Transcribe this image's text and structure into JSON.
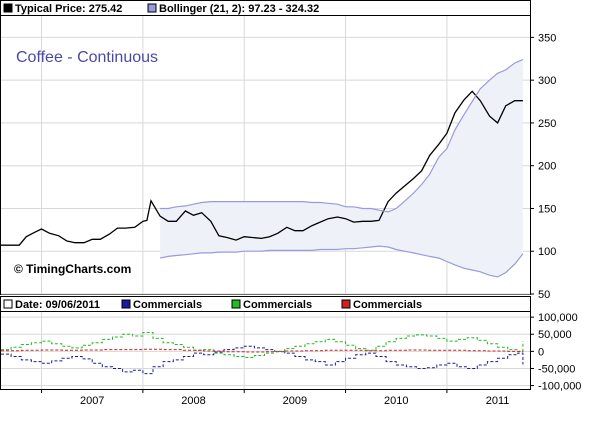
{
  "price_panel": {
    "title": "Coffee - Continuous",
    "copyright": "© TimingCharts.com",
    "legend": [
      {
        "label": "Typical Price: 275.42",
        "color": "#000000"
      },
      {
        "label": "Bollinger (21, 2): 97.23 - 324.32",
        "color": "#9999dd"
      }
    ]
  },
  "cot_panel": {
    "legend": [
      {
        "label": "Date: 09/06/2011",
        "color": "#ffffff"
      },
      {
        "label": "Commercials",
        "color": "#1a1aa8"
      },
      {
        "label": "Commercials",
        "color": "#22bb22"
      },
      {
        "label": "Commercials",
        "color": "#cc2222"
      }
    ]
  },
  "chart_data": [
    {
      "type": "line",
      "title": "Coffee - Continuous",
      "x_ticks": [
        "2007",
        "2008",
        "2009",
        "2010",
        "2011"
      ],
      "y_ticks": [
        50,
        100,
        150,
        200,
        250,
        300,
        350
      ],
      "ylim": [
        50,
        375
      ],
      "x_range": [
        2006.6,
        2011.82
      ],
      "grid": true,
      "series": [
        {
          "name": "Typical Price: 275.42",
          "color": "#000000",
          "x": [
            2006.6,
            2006.78,
            2006.85,
            2006.93,
            2007.0,
            2007.08,
            2007.17,
            2007.25,
            2007.33,
            2007.42,
            2007.5,
            2007.58,
            2007.67,
            2007.75,
            2007.83,
            2007.92,
            2008.0,
            2008.04,
            2008.08,
            2008.17,
            2008.25,
            2008.33,
            2008.42,
            2008.5,
            2008.58,
            2008.67,
            2008.75,
            2008.83,
            2008.92,
            2009.0,
            2009.08,
            2009.17,
            2009.25,
            2009.33,
            2009.42,
            2009.5,
            2009.58,
            2009.67,
            2009.75,
            2009.83,
            2009.92,
            2010.0,
            2010.08,
            2010.17,
            2010.25,
            2010.33,
            2010.42,
            2010.5,
            2010.58,
            2010.67,
            2010.75,
            2010.83,
            2010.92,
            2011.0,
            2011.08,
            2011.17,
            2011.25,
            2011.33,
            2011.42,
            2011.5,
            2011.58,
            2011.67,
            2011.75
          ],
          "values": [
            107,
            107,
            117,
            122,
            126,
            121,
            118,
            112,
            110,
            110,
            114,
            114,
            120,
            127,
            127,
            128,
            135,
            136,
            159,
            141,
            135,
            135,
            147,
            142,
            145,
            135,
            118,
            116,
            113,
            117,
            116,
            115,
            117,
            121,
            128,
            124,
            124,
            130,
            134,
            138,
            140,
            138,
            134,
            135,
            135,
            136,
            158,
            168,
            176,
            185,
            194,
            212,
            225,
            238,
            262,
            277,
            287,
            276,
            258,
            250,
            270,
            276,
            276
          ]
        },
        {
          "name": "Bollinger upper",
          "color": "#9999dd",
          "x": [
            2008.17,
            2008.25,
            2008.33,
            2008.42,
            2008.5,
            2008.58,
            2008.67,
            2008.75,
            2008.83,
            2008.92,
            2009.0,
            2009.08,
            2009.17,
            2009.25,
            2009.33,
            2009.42,
            2009.5,
            2009.58,
            2009.67,
            2009.75,
            2009.83,
            2009.92,
            2010.0,
            2010.08,
            2010.17,
            2010.25,
            2010.33,
            2010.42,
            2010.5,
            2010.58,
            2010.67,
            2010.75,
            2010.83,
            2010.92,
            2011.0,
            2011.08,
            2011.17,
            2011.25,
            2011.33,
            2011.42,
            2011.5,
            2011.58,
            2011.67,
            2011.75
          ],
          "values": [
            150,
            150,
            152,
            153,
            155,
            157,
            158,
            158,
            158,
            158,
            158,
            158,
            158,
            158,
            158,
            158,
            158,
            158,
            157,
            157,
            156,
            155,
            152,
            152,
            150,
            150,
            148,
            146,
            150,
            158,
            168,
            178,
            190,
            210,
            220,
            242,
            260,
            275,
            290,
            300,
            308,
            312,
            320,
            324
          ]
        },
        {
          "name": "Bollinger lower",
          "color": "#9999dd",
          "x": [
            2008.17,
            2008.25,
            2008.33,
            2008.42,
            2008.5,
            2008.58,
            2008.67,
            2008.75,
            2008.83,
            2008.92,
            2009.0,
            2009.08,
            2009.17,
            2009.25,
            2009.33,
            2009.42,
            2009.5,
            2009.58,
            2009.67,
            2009.75,
            2009.83,
            2009.92,
            2010.0,
            2010.08,
            2010.17,
            2010.25,
            2010.33,
            2010.42,
            2010.5,
            2010.58,
            2010.67,
            2010.75,
            2010.83,
            2010.92,
            2011.0,
            2011.08,
            2011.17,
            2011.25,
            2011.33,
            2011.42,
            2011.5,
            2011.58,
            2011.67,
            2011.75
          ],
          "values": [
            92,
            94,
            95,
            96,
            97,
            98,
            98,
            99,
            99,
            99,
            100,
            100,
            100,
            101,
            101,
            101,
            101,
            101,
            101,
            102,
            102,
            102,
            103,
            103,
            104,
            105,
            106,
            105,
            102,
            100,
            98,
            96,
            94,
            92,
            88,
            84,
            80,
            78,
            76,
            72,
            70,
            75,
            85,
            97
          ]
        }
      ]
    },
    {
      "type": "line",
      "title": "",
      "x_ticks": [
        "2007",
        "2008",
        "2009",
        "2010",
        "2011"
      ],
      "y_ticks": [
        100000,
        50000,
        0,
        -50000,
        -100000
      ],
      "y_tick_labels": [
        "100,000",
        "50,000",
        "0",
        "-50,000",
        "-100,000"
      ],
      "ylim": [
        -110000,
        115000
      ],
      "x_range": [
        2006.6,
        2011.82
      ],
      "grid": true,
      "step": true,
      "series": [
        {
          "name": "Commercials",
          "color": "#1a1aa8",
          "x": [
            2006.6,
            2006.7,
            2006.8,
            2006.9,
            2007.0,
            2007.1,
            2007.2,
            2007.3,
            2007.4,
            2007.5,
            2007.6,
            2007.7,
            2007.8,
            2007.9,
            2008.0,
            2008.1,
            2008.2,
            2008.3,
            2008.4,
            2008.5,
            2008.6,
            2008.7,
            2008.8,
            2008.9,
            2009.0,
            2009.1,
            2009.2,
            2009.3,
            2009.4,
            2009.5,
            2009.6,
            2009.7,
            2009.8,
            2009.9,
            2010.0,
            2010.1,
            2010.2,
            2010.3,
            2010.4,
            2010.5,
            2010.6,
            2010.7,
            2010.8,
            2010.9,
            2011.0,
            2011.1,
            2011.2,
            2011.3,
            2011.4,
            2011.5,
            2011.6,
            2011.7,
            2011.75
          ],
          "values": [
            -8000,
            -15000,
            -25000,
            -30000,
            -35000,
            -28000,
            -20000,
            -15000,
            -22000,
            -35000,
            -45000,
            -50000,
            -60000,
            -55000,
            -65000,
            -45000,
            -30000,
            -25000,
            -15000,
            -5000,
            -10000,
            -2000,
            5000,
            10000,
            15000,
            10000,
            5000,
            0,
            -5000,
            -15000,
            -25000,
            -30000,
            -40000,
            -30000,
            -20000,
            -10000,
            -5000,
            -15000,
            -30000,
            -40000,
            -45000,
            -50000,
            -48000,
            -40000,
            -35000,
            -45000,
            -50000,
            -40000,
            -30000,
            -20000,
            -10000,
            -5000,
            -38000
          ]
        },
        {
          "name": "Commercials",
          "color": "#22bb22",
          "x": [
            2006.6,
            2006.7,
            2006.8,
            2006.9,
            2007.0,
            2007.1,
            2007.2,
            2007.3,
            2007.4,
            2007.5,
            2007.6,
            2007.7,
            2007.8,
            2007.9,
            2008.0,
            2008.1,
            2008.2,
            2008.3,
            2008.4,
            2008.5,
            2008.6,
            2008.7,
            2008.8,
            2008.9,
            2009.0,
            2009.1,
            2009.2,
            2009.3,
            2009.4,
            2009.5,
            2009.6,
            2009.7,
            2009.8,
            2009.9,
            2010.0,
            2010.1,
            2010.2,
            2010.3,
            2010.4,
            2010.5,
            2010.6,
            2010.7,
            2010.8,
            2010.9,
            2011.0,
            2011.1,
            2011.2,
            2011.3,
            2011.4,
            2011.5,
            2011.6,
            2011.7,
            2011.75
          ],
          "values": [
            5000,
            12000,
            20000,
            25000,
            30000,
            22000,
            15000,
            10000,
            18000,
            25000,
            35000,
            42000,
            50000,
            45000,
            55000,
            38000,
            25000,
            20000,
            12000,
            3000,
            5000,
            -5000,
            -10000,
            -15000,
            -18000,
            -12000,
            -5000,
            0,
            8000,
            15000,
            22000,
            28000,
            35000,
            28000,
            18000,
            8000,
            3000,
            15000,
            28000,
            38000,
            45000,
            48000,
            45000,
            38000,
            30000,
            35000,
            40000,
            32000,
            22000,
            12000,
            5000,
            0,
            30000
          ]
        },
        {
          "name": "Commercials",
          "color": "#cc2222",
          "x": [
            2006.6,
            2006.8,
            2007.0,
            2007.2,
            2007.4,
            2007.6,
            2007.8,
            2008.0,
            2008.2,
            2008.4,
            2008.6,
            2008.8,
            2009.0,
            2009.2,
            2009.4,
            2009.6,
            2009.8,
            2010.0,
            2010.2,
            2010.4,
            2010.6,
            2010.8,
            2011.0,
            2011.2,
            2011.4,
            2011.6,
            2011.75
          ],
          "values": [
            2000,
            3000,
            4000,
            3000,
            4000,
            5000,
            5000,
            6000,
            5000,
            3000,
            1000,
            -1000,
            -2000,
            -1000,
            1000,
            2000,
            3000,
            3000,
            2000,
            3000,
            4000,
            3000,
            3000,
            2000,
            1000,
            0,
            500
          ]
        }
      ]
    }
  ]
}
